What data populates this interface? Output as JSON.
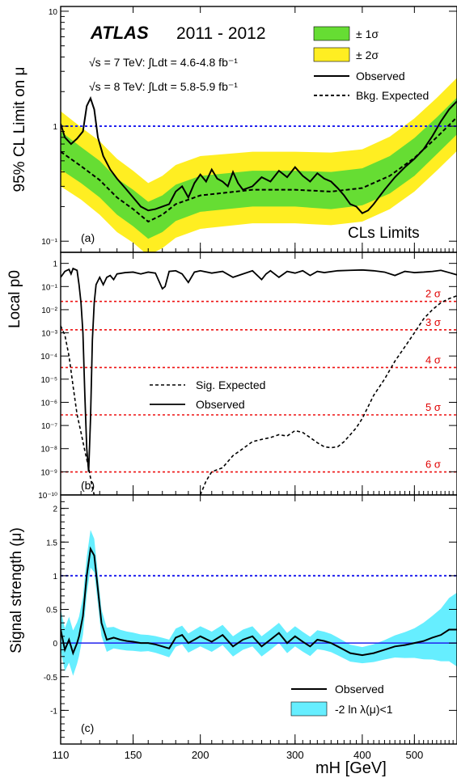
{
  "colors": {
    "band_1sigma": "#66dd33",
    "band_2sigma": "#ffee22",
    "band_cyan": "#66eeff",
    "ref_blue": "#2222ee",
    "ref_red": "#ee1111",
    "line": "#000000"
  },
  "header": {
    "atlas": "ATLAS",
    "years": "2011 - 2012",
    "lumi_7": "√s = 7 TeV: ∫Ldt = 4.6-4.8 fb⁻¹",
    "lumi_8": "√s = 8 TeV: ∫Ldt = 5.8-5.9 fb⁻¹"
  },
  "chart_data": [
    {
      "panel": "a",
      "type": "line",
      "ylabel": "95% CL Limit on μ",
      "panel_label": "(a)",
      "annotation": "CLs Limits",
      "y_scale": "log",
      "ylim": [
        0.08,
        11
      ],
      "y_ticks": [
        {
          "v": 0.1,
          "label": "10⁻¹"
        },
        {
          "v": 1,
          "label": "1"
        },
        {
          "v": 10,
          "label": "10"
        }
      ],
      "reference_lines": [
        {
          "y": 1,
          "color": "blue"
        }
      ],
      "legend": {
        "band1": "± 1σ",
        "band2": "± 2σ",
        "observed": "Observed",
        "expected": "Bkg. Expected"
      },
      "expected_band": [
        {
          "m": 110,
          "exp": 0.6,
          "p1": 0.9,
          "m1": 0.42,
          "p2": 1.35,
          "m2": 0.3
        },
        {
          "m": 120,
          "exp": 0.45,
          "p1": 0.66,
          "m1": 0.32,
          "p2": 0.98,
          "m2": 0.23
        },
        {
          "m": 130,
          "exp": 0.34,
          "p1": 0.5,
          "m1": 0.24,
          "p2": 0.74,
          "m2": 0.17
        },
        {
          "m": 140,
          "exp": 0.24,
          "p1": 0.35,
          "m1": 0.17,
          "p2": 0.52,
          "m2": 0.12
        },
        {
          "m": 150,
          "exp": 0.19,
          "p1": 0.28,
          "m1": 0.135,
          "p2": 0.41,
          "m2": 0.097
        },
        {
          "m": 160,
          "exp": 0.148,
          "p1": 0.22,
          "m1": 0.105,
          "p2": 0.32,
          "m2": 0.075
        },
        {
          "m": 170,
          "exp": 0.17,
          "p1": 0.25,
          "m1": 0.12,
          "p2": 0.37,
          "m2": 0.087
        },
        {
          "m": 180,
          "exp": 0.21,
          "p1": 0.31,
          "m1": 0.15,
          "p2": 0.46,
          "m2": 0.107
        },
        {
          "m": 200,
          "exp": 0.25,
          "p1": 0.37,
          "m1": 0.18,
          "p2": 0.55,
          "m2": 0.128
        },
        {
          "m": 250,
          "exp": 0.28,
          "p1": 0.41,
          "m1": 0.2,
          "p2": 0.6,
          "m2": 0.143
        },
        {
          "m": 300,
          "exp": 0.28,
          "p1": 0.41,
          "m1": 0.2,
          "p2": 0.6,
          "m2": 0.143
        },
        {
          "m": 350,
          "exp": 0.27,
          "p1": 0.4,
          "m1": 0.19,
          "p2": 0.59,
          "m2": 0.138
        },
        {
          "m": 400,
          "exp": 0.29,
          "p1": 0.43,
          "m1": 0.205,
          "p2": 0.63,
          "m2": 0.148
        },
        {
          "m": 450,
          "exp": 0.37,
          "p1": 0.55,
          "m1": 0.26,
          "p2": 0.81,
          "m2": 0.19
        },
        {
          "m": 500,
          "exp": 0.53,
          "p1": 0.79,
          "m1": 0.37,
          "p2": 1.17,
          "m2": 0.27
        },
        {
          "m": 550,
          "exp": 0.8,
          "p1": 1.19,
          "m1": 0.57,
          "p2": 1.76,
          "m2": 0.41
        },
        {
          "m": 600,
          "exp": 1.2,
          "p1": 1.78,
          "m1": 0.85,
          "p2": 2.64,
          "m2": 0.61
        }
      ],
      "observed": [
        [
          110,
          1.05
        ],
        [
          112,
          0.8
        ],
        [
          115,
          0.7
        ],
        [
          118,
          0.78
        ],
        [
          121,
          0.9
        ],
        [
          123,
          1.5
        ],
        [
          125,
          1.75
        ],
        [
          127,
          1.4
        ],
        [
          129,
          0.8
        ],
        [
          132,
          0.55
        ],
        [
          136,
          0.42
        ],
        [
          140,
          0.35
        ],
        [
          145,
          0.29
        ],
        [
          150,
          0.24
        ],
        [
          155,
          0.2
        ],
        [
          160,
          0.185
        ],
        [
          165,
          0.19
        ],
        [
          170,
          0.2
        ],
        [
          175,
          0.21
        ],
        [
          180,
          0.27
        ],
        [
          185,
          0.3
        ],
        [
          190,
          0.24
        ],
        [
          195,
          0.32
        ],
        [
          200,
          0.38
        ],
        [
          205,
          0.33
        ],
        [
          210,
          0.42
        ],
        [
          215,
          0.35
        ],
        [
          220,
          0.33
        ],
        [
          225,
          0.3
        ],
        [
          230,
          0.4
        ],
        [
          235,
          0.32
        ],
        [
          240,
          0.28
        ],
        [
          250,
          0.3
        ],
        [
          260,
          0.36
        ],
        [
          270,
          0.33
        ],
        [
          280,
          0.41
        ],
        [
          290,
          0.36
        ],
        [
          300,
          0.44
        ],
        [
          310,
          0.37
        ],
        [
          320,
          0.33
        ],
        [
          330,
          0.39
        ],
        [
          340,
          0.35
        ],
        [
          350,
          0.33
        ],
        [
          360,
          0.29
        ],
        [
          370,
          0.25
        ],
        [
          380,
          0.21
        ],
        [
          390,
          0.2
        ],
        [
          400,
          0.175
        ],
        [
          410,
          0.185
        ],
        [
          420,
          0.21
        ],
        [
          440,
          0.28
        ],
        [
          460,
          0.36
        ],
        [
          480,
          0.44
        ],
        [
          500,
          0.52
        ],
        [
          520,
          0.63
        ],
        [
          540,
          0.82
        ],
        [
          560,
          1.1
        ],
        [
          580,
          1.4
        ],
        [
          600,
          1.65
        ]
      ]
    },
    {
      "panel": "b",
      "type": "line",
      "ylabel": "Local p0",
      "panel_label": "(b)",
      "y_scale": "log",
      "ylim": [
        1e-10,
        3
      ],
      "y_ticks": [
        {
          "v": 1,
          "label": "1"
        },
        {
          "v": 0.1,
          "label": "10⁻¹"
        },
        {
          "v": 0.01,
          "label": "10⁻²"
        },
        {
          "v": 0.001,
          "label": "10⁻³"
        },
        {
          "v": 0.0001,
          "label": "10⁻⁴"
        },
        {
          "v": 1e-05,
          "label": "10⁻⁵"
        },
        {
          "v": 1e-06,
          "label": "10⁻⁶"
        },
        {
          "v": 1e-07,
          "label": "10⁻⁷"
        },
        {
          "v": 1e-08,
          "label": "10⁻⁸"
        },
        {
          "v": 1e-09,
          "label": "10⁻⁹"
        },
        {
          "v": 1e-10,
          "label": "10⁻¹⁰"
        }
      ],
      "sigma_lines": [
        {
          "label": "2 σ",
          "p0": 0.0228
        },
        {
          "label": "3 σ",
          "p0": 0.00135
        },
        {
          "label": "4 σ",
          "p0": 3.17e-05
        },
        {
          "label": "5 σ",
          "p0": 2.87e-07
        },
        {
          "label": "6 σ",
          "p0": 9.87e-10
        }
      ],
      "legend": {
        "expected": "Sig. Expected",
        "observed": "Observed"
      },
      "observed": [
        [
          110,
          0.25
        ],
        [
          112,
          0.45
        ],
        [
          114,
          0.55
        ],
        [
          115,
          0.35
        ],
        [
          116,
          0.6
        ],
        [
          118,
          0.5
        ],
        [
          119,
          0.12
        ],
        [
          120,
          0.02
        ],
        [
          121,
          0.001
        ],
        [
          122,
          2e-06
        ],
        [
          123,
          1e-08
        ],
        [
          124,
          1e-09
        ],
        [
          125,
          2e-07
        ],
        [
          126,
          0.0005
        ],
        [
          127,
          0.02
        ],
        [
          128,
          0.12
        ],
        [
          130,
          0.25
        ],
        [
          132,
          0.12
        ],
        [
          134,
          0.25
        ],
        [
          136,
          0.3
        ],
        [
          138,
          0.2
        ],
        [
          140,
          0.35
        ],
        [
          145,
          0.4
        ],
        [
          150,
          0.42
        ],
        [
          155,
          0.35
        ],
        [
          160,
          0.42
        ],
        [
          165,
          0.38
        ],
        [
          170,
          0.08
        ],
        [
          172,
          0.1
        ],
        [
          175,
          0.45
        ],
        [
          180,
          0.48
        ],
        [
          185,
          0.35
        ],
        [
          190,
          0.15
        ],
        [
          195,
          0.42
        ],
        [
          200,
          0.48
        ],
        [
          210,
          0.38
        ],
        [
          220,
          0.45
        ],
        [
          230,
          0.25
        ],
        [
          240,
          0.35
        ],
        [
          250,
          0.48
        ],
        [
          260,
          0.2
        ],
        [
          265,
          0.35
        ],
        [
          270,
          0.48
        ],
        [
          280,
          0.25
        ],
        [
          290,
          0.45
        ],
        [
          300,
          0.38
        ],
        [
          310,
          0.48
        ],
        [
          320,
          0.3
        ],
        [
          330,
          0.45
        ],
        [
          340,
          0.4
        ],
        [
          360,
          0.48
        ],
        [
          380,
          0.5
        ],
        [
          400,
          0.52
        ],
        [
          420,
          0.48
        ],
        [
          440,
          0.42
        ],
        [
          460,
          0.3
        ],
        [
          480,
          0.45
        ],
        [
          500,
          0.4
        ],
        [
          520,
          0.42
        ],
        [
          540,
          0.45
        ],
        [
          560,
          0.5
        ],
        [
          580,
          0.4
        ],
        [
          600,
          0.32
        ]
      ],
      "expected": [
        [
          110,
          0.002
        ],
        [
          112,
          0.0008
        ],
        [
          114,
          0.0001
        ],
        [
          116,
          5e-06
        ],
        [
          118,
          3e-07
        ],
        [
          120,
          5e-08
        ],
        [
          122,
          8e-09
        ],
        [
          124,
          1.5e-09
        ],
        [
          126,
          2e-10
        ],
        [
          127,
          1e-10
        ],
        null,
        [
          200,
          1e-10
        ],
        [
          205,
          4e-10
        ],
        [
          210,
          1e-09
        ],
        [
          220,
          1.5e-09
        ],
        [
          230,
          5e-09
        ],
        [
          240,
          1e-08
        ],
        [
          250,
          2e-08
        ],
        [
          260,
          2.5e-08
        ],
        [
          270,
          3e-08
        ],
        [
          280,
          4e-08
        ],
        [
          290,
          3.5e-08
        ],
        [
          300,
          6e-08
        ],
        [
          310,
          5e-08
        ],
        [
          320,
          3e-08
        ],
        [
          330,
          1.8e-08
        ],
        [
          340,
          1.2e-08
        ],
        [
          350,
          1.1e-08
        ],
        [
          360,
          1.2e-08
        ],
        [
          370,
          2e-08
        ],
        [
          380,
          4e-08
        ],
        [
          390,
          8e-08
        ],
        [
          400,
          2e-07
        ],
        [
          420,
          2e-06
        ],
        [
          440,
          1e-05
        ],
        [
          460,
          6e-05
        ],
        [
          480,
          0.00025
        ],
        [
          500,
          0.001
        ],
        [
          520,
          0.004
        ],
        [
          540,
          0.01
        ],
        [
          560,
          0.02
        ],
        [
          580,
          0.03
        ],
        [
          600,
          0.04
        ]
      ]
    },
    {
      "panel": "c",
      "type": "line",
      "ylabel": "Signal strength (μ)",
      "panel_label": "(c)",
      "xlabel": "mH [GeV]",
      "y_scale": "linear",
      "ylim": [
        -1.5,
        2.2
      ],
      "y_ticks": [
        {
          "v": -1,
          "label": "-1"
        },
        {
          "v": -0.5,
          "label": "-0.5"
        },
        {
          "v": 0,
          "label": "0"
        },
        {
          "v": 0.5,
          "label": "0.5"
        },
        {
          "v": 1,
          "label": "1"
        },
        {
          "v": 1.5,
          "label": "1.5"
        },
        {
          "v": 2,
          "label": "2"
        }
      ],
      "reference_lines": [
        {
          "y": 1,
          "color": "blue"
        },
        {
          "y": 0,
          "color": "blue-solid"
        }
      ],
      "legend": {
        "observed": "Observed",
        "band": "-2 ln λ(μ)<1"
      },
      "observed": [
        [
          110,
          0.2
        ],
        [
          112,
          -0.1
        ],
        [
          114,
          0.05
        ],
        [
          116,
          -0.15
        ],
        [
          118,
          0.0
        ],
        [
          119,
          0.1
        ],
        [
          121,
          0.4
        ],
        [
          123,
          1.0
        ],
        [
          125,
          1.4
        ],
        [
          127,
          1.3
        ],
        [
          129,
          0.8
        ],
        [
          131,
          0.3
        ],
        [
          134,
          0.05
        ],
        [
          138,
          0.08
        ],
        [
          142,
          0.05
        ],
        [
          146,
          0.03
        ],
        [
          150,
          0.02
        ],
        [
          155,
          0.0
        ],
        [
          160,
          0.0
        ],
        [
          165,
          -0.02
        ],
        [
          170,
          -0.05
        ],
        [
          175,
          -0.08
        ],
        [
          180,
          0.08
        ],
        [
          185,
          0.12
        ],
        [
          190,
          0.0
        ],
        [
          195,
          0.05
        ],
        [
          200,
          0.1
        ],
        [
          210,
          0.02
        ],
        [
          220,
          0.12
        ],
        [
          230,
          -0.05
        ],
        [
          240,
          0.05
        ],
        [
          250,
          0.1
        ],
        [
          260,
          -0.05
        ],
        [
          270,
          0.05
        ],
        [
          280,
          0.15
        ],
        [
          290,
          0.0
        ],
        [
          300,
          0.1
        ],
        [
          310,
          0.02
        ],
        [
          320,
          -0.05
        ],
        [
          330,
          0.05
        ],
        [
          340,
          0.03
        ],
        [
          350,
          0.0
        ],
        [
          360,
          -0.05
        ],
        [
          370,
          -0.1
        ],
        [
          380,
          -0.15
        ],
        [
          400,
          -0.18
        ],
        [
          420,
          -0.15
        ],
        [
          440,
          -0.1
        ],
        [
          460,
          -0.05
        ],
        [
          480,
          -0.03
        ],
        [
          500,
          0.0
        ],
        [
          520,
          0.03
        ],
        [
          540,
          0.08
        ],
        [
          560,
          0.12
        ],
        [
          580,
          0.2
        ],
        [
          600,
          0.2
        ]
      ],
      "band_halfwidth": [
        [
          110,
          0.3
        ],
        [
          115,
          0.35
        ],
        [
          120,
          0.28
        ],
        [
          125,
          0.28
        ],
        [
          130,
          0.2
        ],
        [
          140,
          0.15
        ],
        [
          160,
          0.12
        ],
        [
          200,
          0.15
        ],
        [
          300,
          0.15
        ],
        [
          400,
          0.12
        ],
        [
          450,
          0.15
        ],
        [
          500,
          0.22
        ],
        [
          550,
          0.35
        ],
        [
          600,
          0.55
        ]
      ]
    }
  ],
  "x_axis": {
    "scale": "log",
    "xlim": [
      110,
      600
    ],
    "ticks": [
      {
        "v": 110,
        "label": "110"
      },
      {
        "v": 150,
        "label": "150"
      },
      {
        "v": 200,
        "label": "200"
      },
      {
        "v": 300,
        "label": "300"
      },
      {
        "v": 400,
        "label": "400"
      },
      {
        "v": 500,
        "label": "500"
      }
    ]
  }
}
